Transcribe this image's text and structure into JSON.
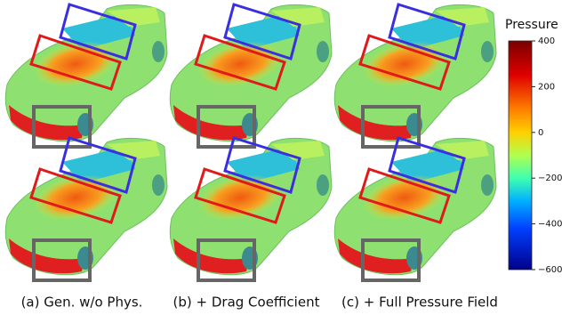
{
  "panels": [
    {
      "caption": "(a) Gen. w/o Phys."
    },
    {
      "caption": "(b) + Drag Coefficient"
    },
    {
      "caption": "(c) + Full Pressure Field"
    }
  ],
  "colorbar": {
    "title": "Pressure",
    "lim": [
      -600,
      400
    ],
    "ticks": [
      400,
      200,
      0,
      {
        "value": -200,
        "label": "−200"
      },
      {
        "value": -400,
        "label": "−400"
      },
      {
        "value": -600,
        "label": "−600"
      }
    ]
  }
}
